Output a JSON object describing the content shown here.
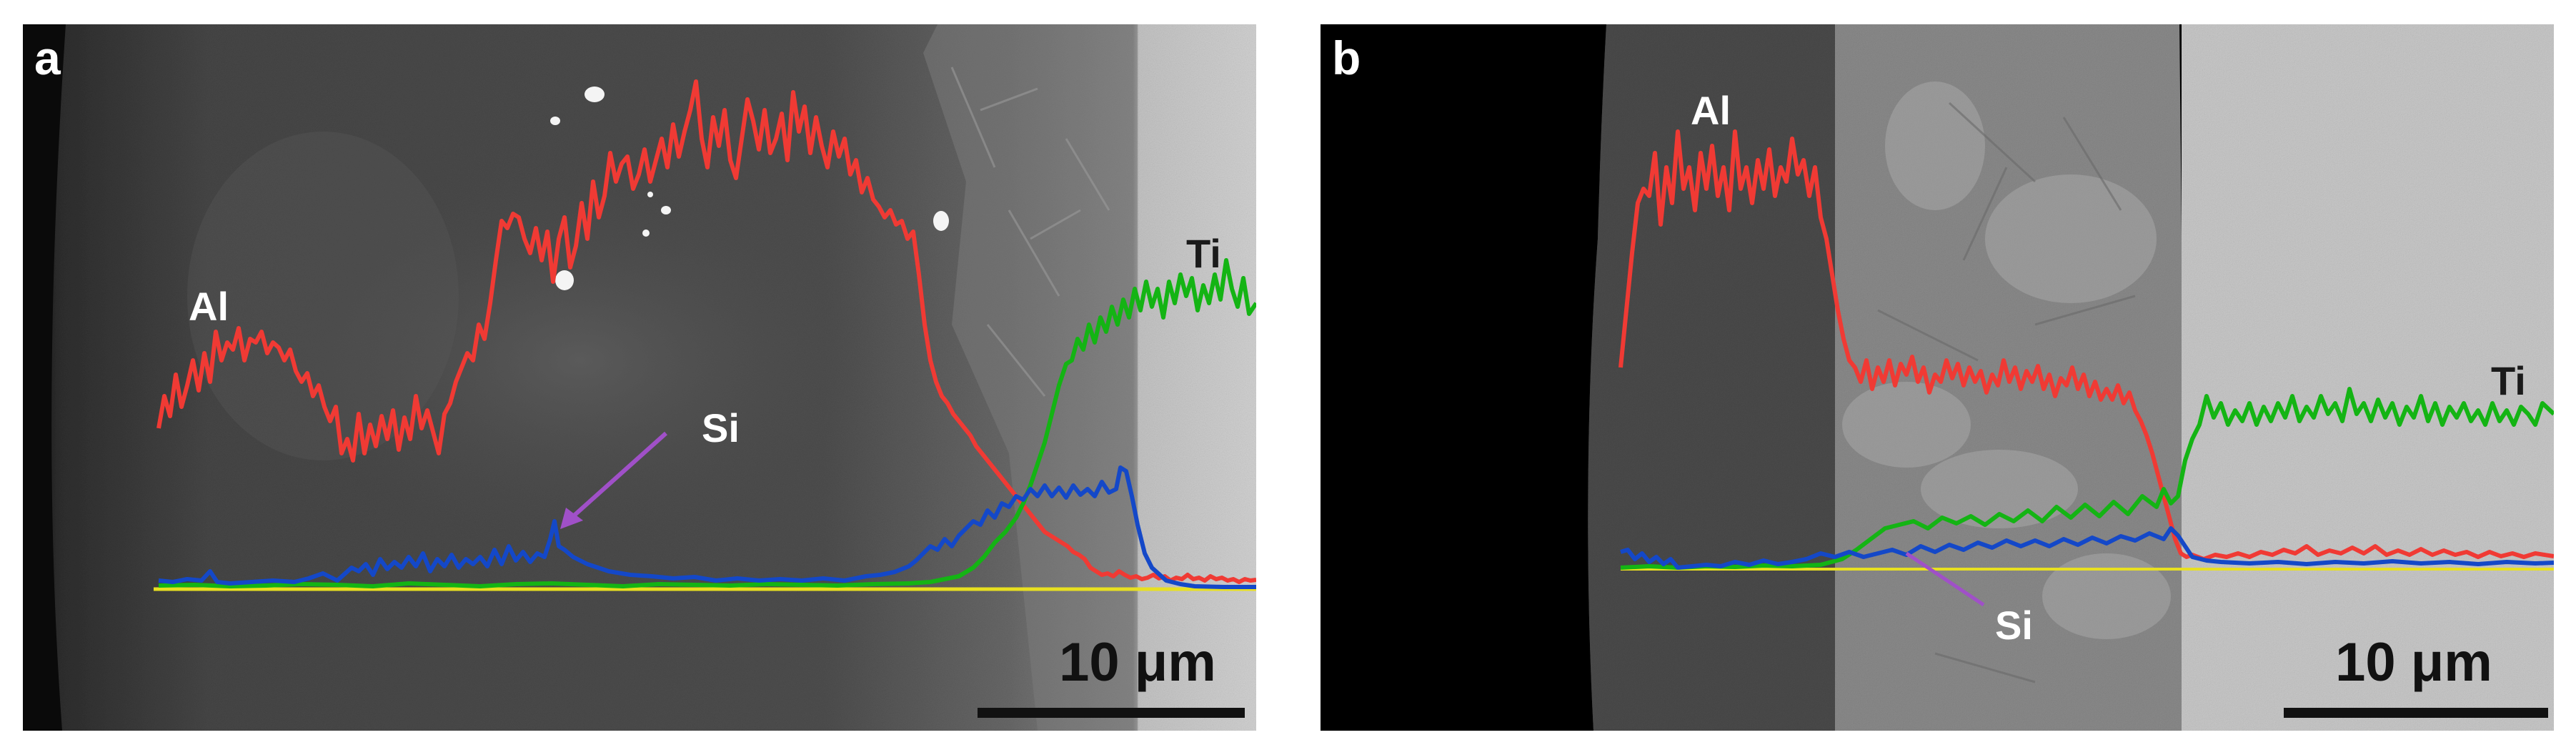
{
  "panels": [
    {
      "letter": "a",
      "labels": {
        "al": "Al",
        "ti": "Ti",
        "si": "Si"
      },
      "scale_bar": "10 μm",
      "colors": {
        "al": "#f03a34",
        "ti": "#14b414",
        "si": "#1448c8",
        "baseline": "#e8e020",
        "arrow": "#a050c8"
      }
    },
    {
      "letter": "b",
      "labels": {
        "al": "Al",
        "ti": "Ti",
        "si": "Si"
      },
      "scale_bar": "10 μm",
      "colors": {
        "al": "#f03a34",
        "ti": "#14b414",
        "si": "#1448c8",
        "baseline": "#e8e020",
        "arrow": "#a050c8"
      }
    }
  ]
}
